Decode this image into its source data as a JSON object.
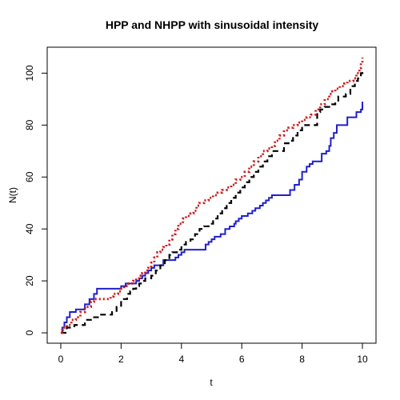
{
  "chart_data": {
    "type": "line",
    "title": "HPP and NHPP with sinusoidal intensity",
    "xlabel": "t",
    "ylabel": "N(t)",
    "xlim": [
      -0.45,
      10.45
    ],
    "ylim": [
      -4,
      110
    ],
    "xticks": [
      0,
      2,
      4,
      6,
      8,
      10
    ],
    "yticks": [
      0,
      20,
      40,
      60,
      80,
      100
    ],
    "grid": false,
    "legend": "none",
    "series": [
      {
        "color": "#1f1fcc",
        "style": "solid",
        "x": [
          0,
          0.05,
          0.12,
          0.2,
          0.3,
          0.5,
          0.8,
          0.95,
          1.1,
          1.2,
          2.0,
          2.15,
          2.5,
          2.6,
          2.7,
          2.8,
          2.9,
          3.0,
          3.1,
          3.4,
          3.8,
          3.9,
          4.0,
          4.1,
          4.8,
          4.9,
          5.0,
          5.1,
          5.3,
          5.45,
          5.6,
          5.75,
          5.8,
          5.9,
          6.0,
          6.2,
          6.35,
          6.45,
          6.6,
          6.7,
          6.8,
          6.9,
          7.0,
          7.6,
          7.75,
          7.9,
          8.0,
          8.15,
          8.25,
          8.35,
          8.65,
          8.8,
          8.9,
          8.95,
          9.05,
          9.15,
          9.5,
          9.8,
          9.95,
          10.0
        ],
        "y": [
          0,
          2,
          4,
          6,
          8,
          9,
          11,
          13,
          15,
          17,
          18,
          19,
          20,
          21,
          22,
          23,
          24,
          25,
          26,
          28,
          29,
          30,
          31,
          32,
          34,
          35,
          36,
          37,
          38,
          40,
          41,
          42,
          43,
          44,
          45,
          46,
          47,
          48,
          49,
          50,
          51,
          52,
          53,
          55,
          57,
          59,
          62,
          64,
          65,
          66,
          69,
          70,
          72,
          75,
          77,
          80,
          83,
          85,
          86,
          89
        ]
      },
      {
        "color": "#000000",
        "style": "dashed",
        "x": [
          0,
          0.2,
          0.45,
          0.8,
          1.05,
          1.3,
          1.7,
          1.85,
          2.0,
          2.2,
          2.3,
          2.4,
          2.5,
          2.6,
          2.7,
          2.8,
          3.0,
          3.15,
          3.3,
          3.45,
          3.6,
          3.7,
          3.85,
          4.0,
          4.15,
          4.3,
          4.45,
          4.6,
          4.75,
          4.9,
          5.05,
          5.2,
          5.35,
          5.5,
          5.65,
          5.8,
          5.95,
          6.1,
          6.25,
          6.4,
          6.55,
          6.7,
          6.85,
          7.0,
          7.4,
          7.55,
          7.7,
          7.85,
          8.0,
          8.5,
          8.6,
          8.75,
          9.0,
          9.1,
          9.2,
          9.45,
          9.6,
          9.75,
          9.85,
          9.95,
          10.0
        ],
        "y": [
          0,
          2,
          3,
          5,
          6,
          7,
          8,
          10,
          13,
          15,
          16,
          17,
          18,
          19,
          20,
          21,
          22,
          24,
          26,
          28,
          30,
          31,
          32,
          34,
          35,
          36,
          38,
          40,
          41,
          42,
          44,
          46,
          48,
          50,
          52,
          54,
          56,
          58,
          60,
          62,
          64,
          66,
          68,
          70,
          73,
          74,
          76,
          78,
          80,
          85,
          86,
          87,
          88,
          89,
          91,
          92,
          95,
          97,
          98,
          100,
          101
        ]
      },
      {
        "color": "#cc1a1a",
        "style": "dotted",
        "x": [
          0,
          0.05,
          0.1,
          0.2,
          0.35,
          0.5,
          0.65,
          0.8,
          1.0,
          1.1,
          1.65,
          1.75,
          1.9,
          2.0,
          2.1,
          2.25,
          2.4,
          2.5,
          2.6,
          2.7,
          2.8,
          2.9,
          3.0,
          3.1,
          3.2,
          3.3,
          3.4,
          3.5,
          3.6,
          3.7,
          3.8,
          3.9,
          4.05,
          4.15,
          4.3,
          4.4,
          4.5,
          4.6,
          4.75,
          4.9,
          5.05,
          5.2,
          5.35,
          5.5,
          5.65,
          5.8,
          5.95,
          6.1,
          6.25,
          6.4,
          6.55,
          6.7,
          6.85,
          7.0,
          7.1,
          7.25,
          7.4,
          7.55,
          7.7,
          7.85,
          8.0,
          8.15,
          8.3,
          8.45,
          8.6,
          8.75,
          8.9,
          9.0,
          9.1,
          9.25,
          9.4,
          9.5,
          9.7,
          9.8,
          9.9,
          9.95,
          10.0
        ],
        "y": [
          0,
          1,
          2,
          3,
          5,
          6,
          8,
          10,
          12,
          13,
          14,
          15,
          16,
          17,
          18,
          19,
          20,
          21,
          22,
          23,
          24,
          25,
          27,
          29,
          31,
          32,
          33,
          34,
          36,
          38,
          40,
          42,
          44,
          45,
          46,
          47,
          49,
          50,
          51,
          52,
          53,
          54,
          55,
          56,
          57,
          59,
          60,
          62,
          64,
          66,
          68,
          70,
          71,
          72,
          74,
          76,
          78,
          79,
          80,
          81,
          82,
          83,
          84,
          86,
          88,
          90,
          92,
          93,
          94,
          95,
          96,
          97,
          98,
          100,
          102,
          104,
          106
        ]
      }
    ]
  }
}
